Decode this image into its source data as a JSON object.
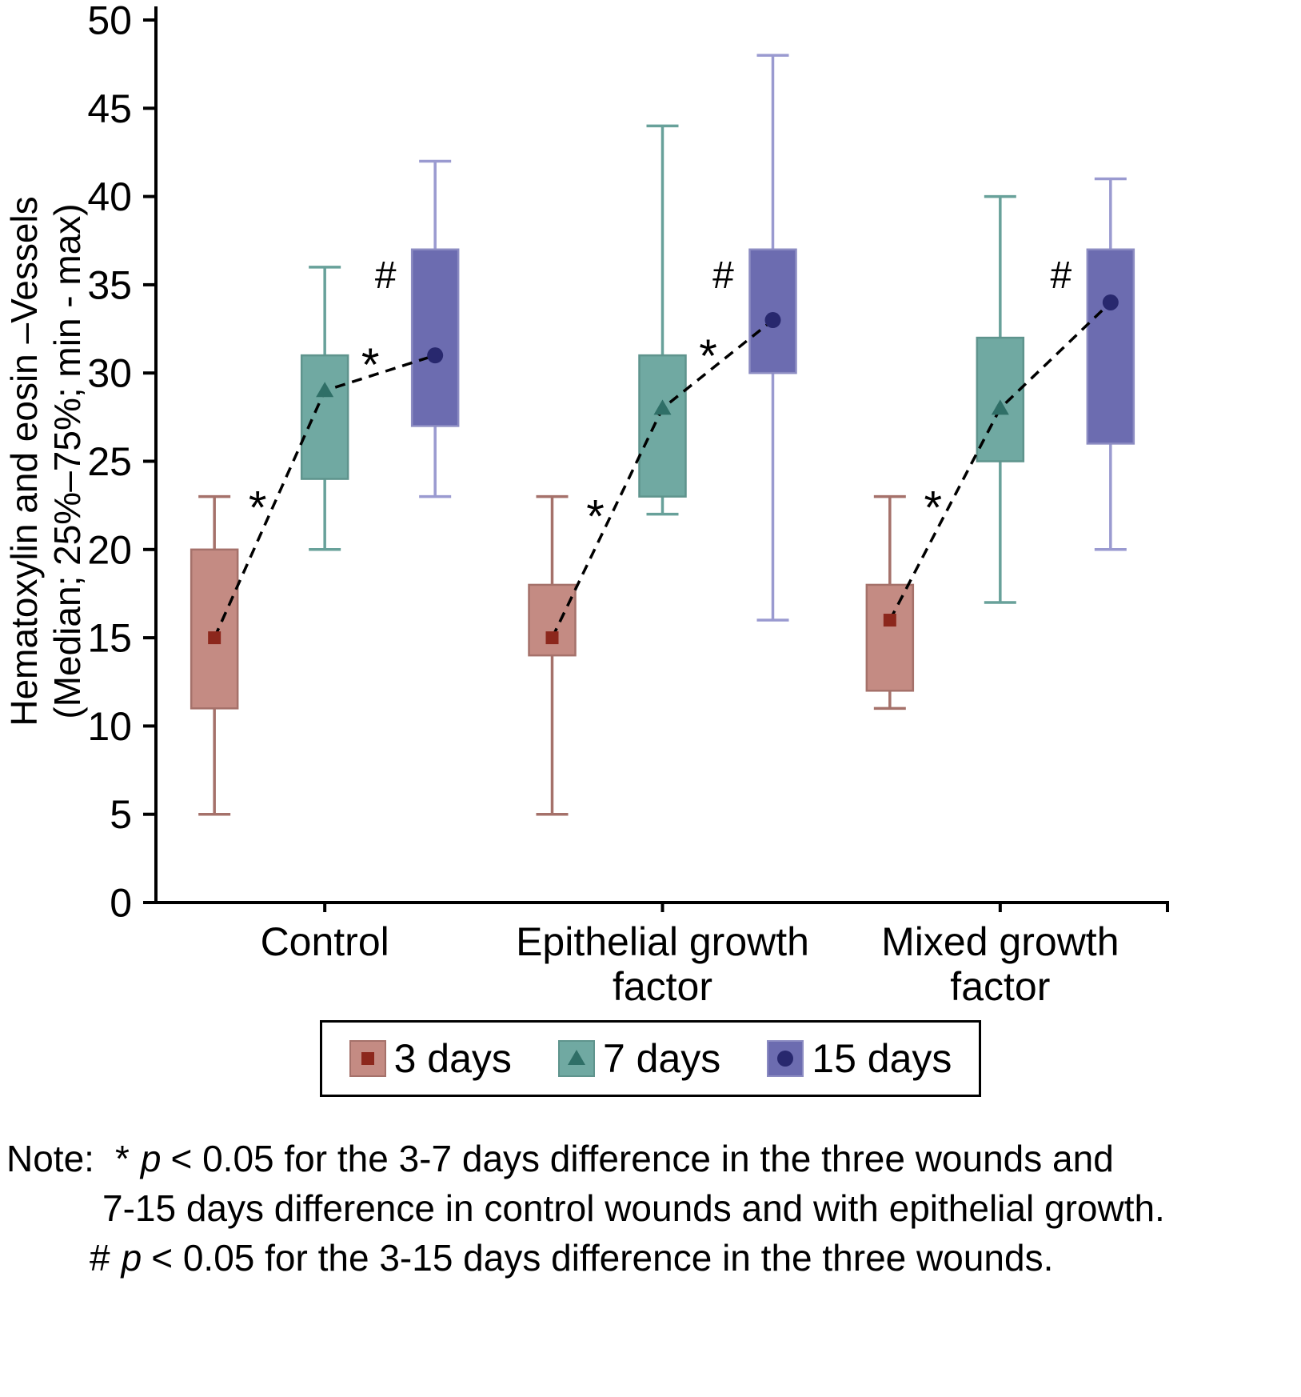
{
  "chart_data": {
    "type": "boxplot",
    "ylabel_lines": [
      "Hematoxylin and eosin –Vessels",
      "(Median; 25%–75%; min - max)"
    ],
    "ylim": [
      0,
      50
    ],
    "ytick_step": 5,
    "grid": false,
    "legend_position": "bottom",
    "categories": [
      "Control",
      "Epithelial growth\nfactor",
      "Mixed growth\nfactor"
    ],
    "series": [
      {
        "name": "3 days",
        "marker": "square",
        "fill": "#c48b83",
        "edge": "#a5716a",
        "whisker": "#a5716a",
        "marker_color": "#8c271c",
        "boxes": [
          {
            "min": 5,
            "q1": 11,
            "median": 15,
            "q3": 20,
            "max": 23
          },
          {
            "min": 5,
            "q1": 14,
            "median": 15,
            "q3": 18,
            "max": 23
          },
          {
            "min": 11,
            "q1": 12,
            "median": 16,
            "q3": 18,
            "max": 23
          }
        ]
      },
      {
        "name": "7 days",
        "marker": "triangle",
        "fill": "#70a9a2",
        "edge": "#5f948d",
        "whisker": "#68a19a",
        "marker_color": "#2f6f67",
        "boxes": [
          {
            "min": 20,
            "q1": 24,
            "median": 29,
            "q3": 31,
            "max": 36
          },
          {
            "min": 22,
            "q1": 23,
            "median": 28,
            "q3": 31,
            "max": 44
          },
          {
            "min": 17,
            "q1": 25,
            "median": 28,
            "q3": 32,
            "max": 40
          }
        ]
      },
      {
        "name": "15 days",
        "marker": "circle",
        "fill": "#6c6cb0",
        "edge": "#8c8cc2",
        "whisker": "#9a9ad0",
        "marker_color": "#28286e",
        "boxes": [
          {
            "min": 23,
            "q1": 27,
            "median": 31,
            "q3": 37,
            "max": 42
          },
          {
            "min": 16,
            "q1": 30,
            "median": 33,
            "q3": 37,
            "max": 48
          },
          {
            "min": 20,
            "q1": 26,
            "median": 34,
            "q3": 37,
            "max": 41
          }
        ]
      }
    ],
    "annotations": {
      "star_symbol": "*",
      "hash_symbol": "#",
      "star_between_3_and_7_days": [
        true,
        true,
        true
      ],
      "star_between_7_and_15_days": [
        true,
        true,
        false
      ],
      "hash_at_15_days": [
        true,
        true,
        true
      ]
    }
  },
  "note": {
    "label": "Note:",
    "star_symbol": "*",
    "hash_symbol": "#",
    "p": "p",
    "line1_rest": "< 0.05 for the 3-7 days difference in the three wounds and",
    "line2": "7-15 days difference in control wounds and with epithelial growth.",
    "line3_rest": "< 0.05 for the 3-15 days difference in the three wounds."
  }
}
